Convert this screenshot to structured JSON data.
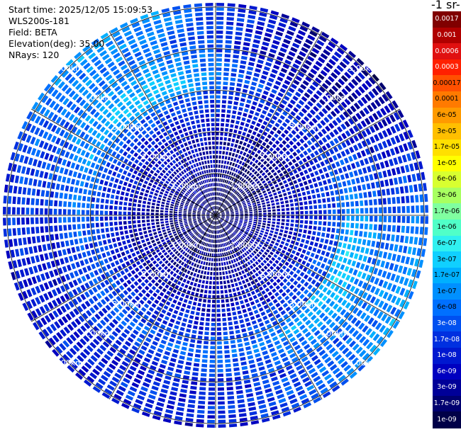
{
  "info": {
    "start_time": "Start time: 2025/12/05 15:09:53",
    "instrument": "WLS200s-181",
    "field": "Field: BETA",
    "elevation": "Elevation(deg): 35.00",
    "nrays": "NRays: 120"
  },
  "colorbar": {
    "title": "-1 sr-",
    "labels": [
      "0.0017",
      "0.001",
      "0.0006",
      "0.0003",
      "0.00017",
      "0.0001",
      "6e-05",
      "3e-05",
      "1.7e-05",
      "1e-05",
      "6e-06",
      "3e-06",
      "1.7e-06",
      "1e-06",
      "6e-07",
      "3e-07",
      "1.7e-07",
      "1e-07",
      "6e-08",
      "3e-08",
      "1.7e-08",
      "1e-08",
      "6e-09",
      "3e-09",
      "1.7e-09",
      "1e-09"
    ],
    "colors": [
      "#800000",
      "#b00000",
      "#e01010",
      "#ff2000",
      "#ff5000",
      "#ff7a00",
      "#ff9a00",
      "#ffbf00",
      "#ffe000",
      "#ffff00",
      "#d8ff30",
      "#a8ff60",
      "#80ffa0",
      "#50ffc8",
      "#30f0f0",
      "#10d0ff",
      "#00b0ff",
      "#0090ff",
      "#0070ff",
      "#0050f0",
      "#0030e0",
      "#0018d0",
      "#0000c0",
      "#000098",
      "#000070",
      "#000048"
    ]
  },
  "chart_data": {
    "type": "heatmap",
    "projection": "polar PPI scan",
    "field": "BETA",
    "elevation_deg": 35.0,
    "n_rays": 120,
    "range_ring_labels_km": [
      1,
      2,
      3,
      4,
      5
    ],
    "ring_labels": [
      "1.00km",
      "2.00km",
      "3.00km",
      "4.00km",
      "5.00km"
    ],
    "max_range_km": 5.1,
    "radial_profile": {
      "range_km": [
        0.2,
        0.8,
        1.5,
        2.2,
        2.8,
        3.3,
        3.7,
        4.2,
        4.8,
        5.1
      ],
      "log10_beta": [
        -8.8,
        -8.6,
        -8.4,
        -8.1,
        -7.7,
        -7.2,
        -7.5,
        -7.8,
        -7.6,
        -7.9
      ]
    },
    "colorscale": "log, 1e-09 to 0.0017"
  }
}
